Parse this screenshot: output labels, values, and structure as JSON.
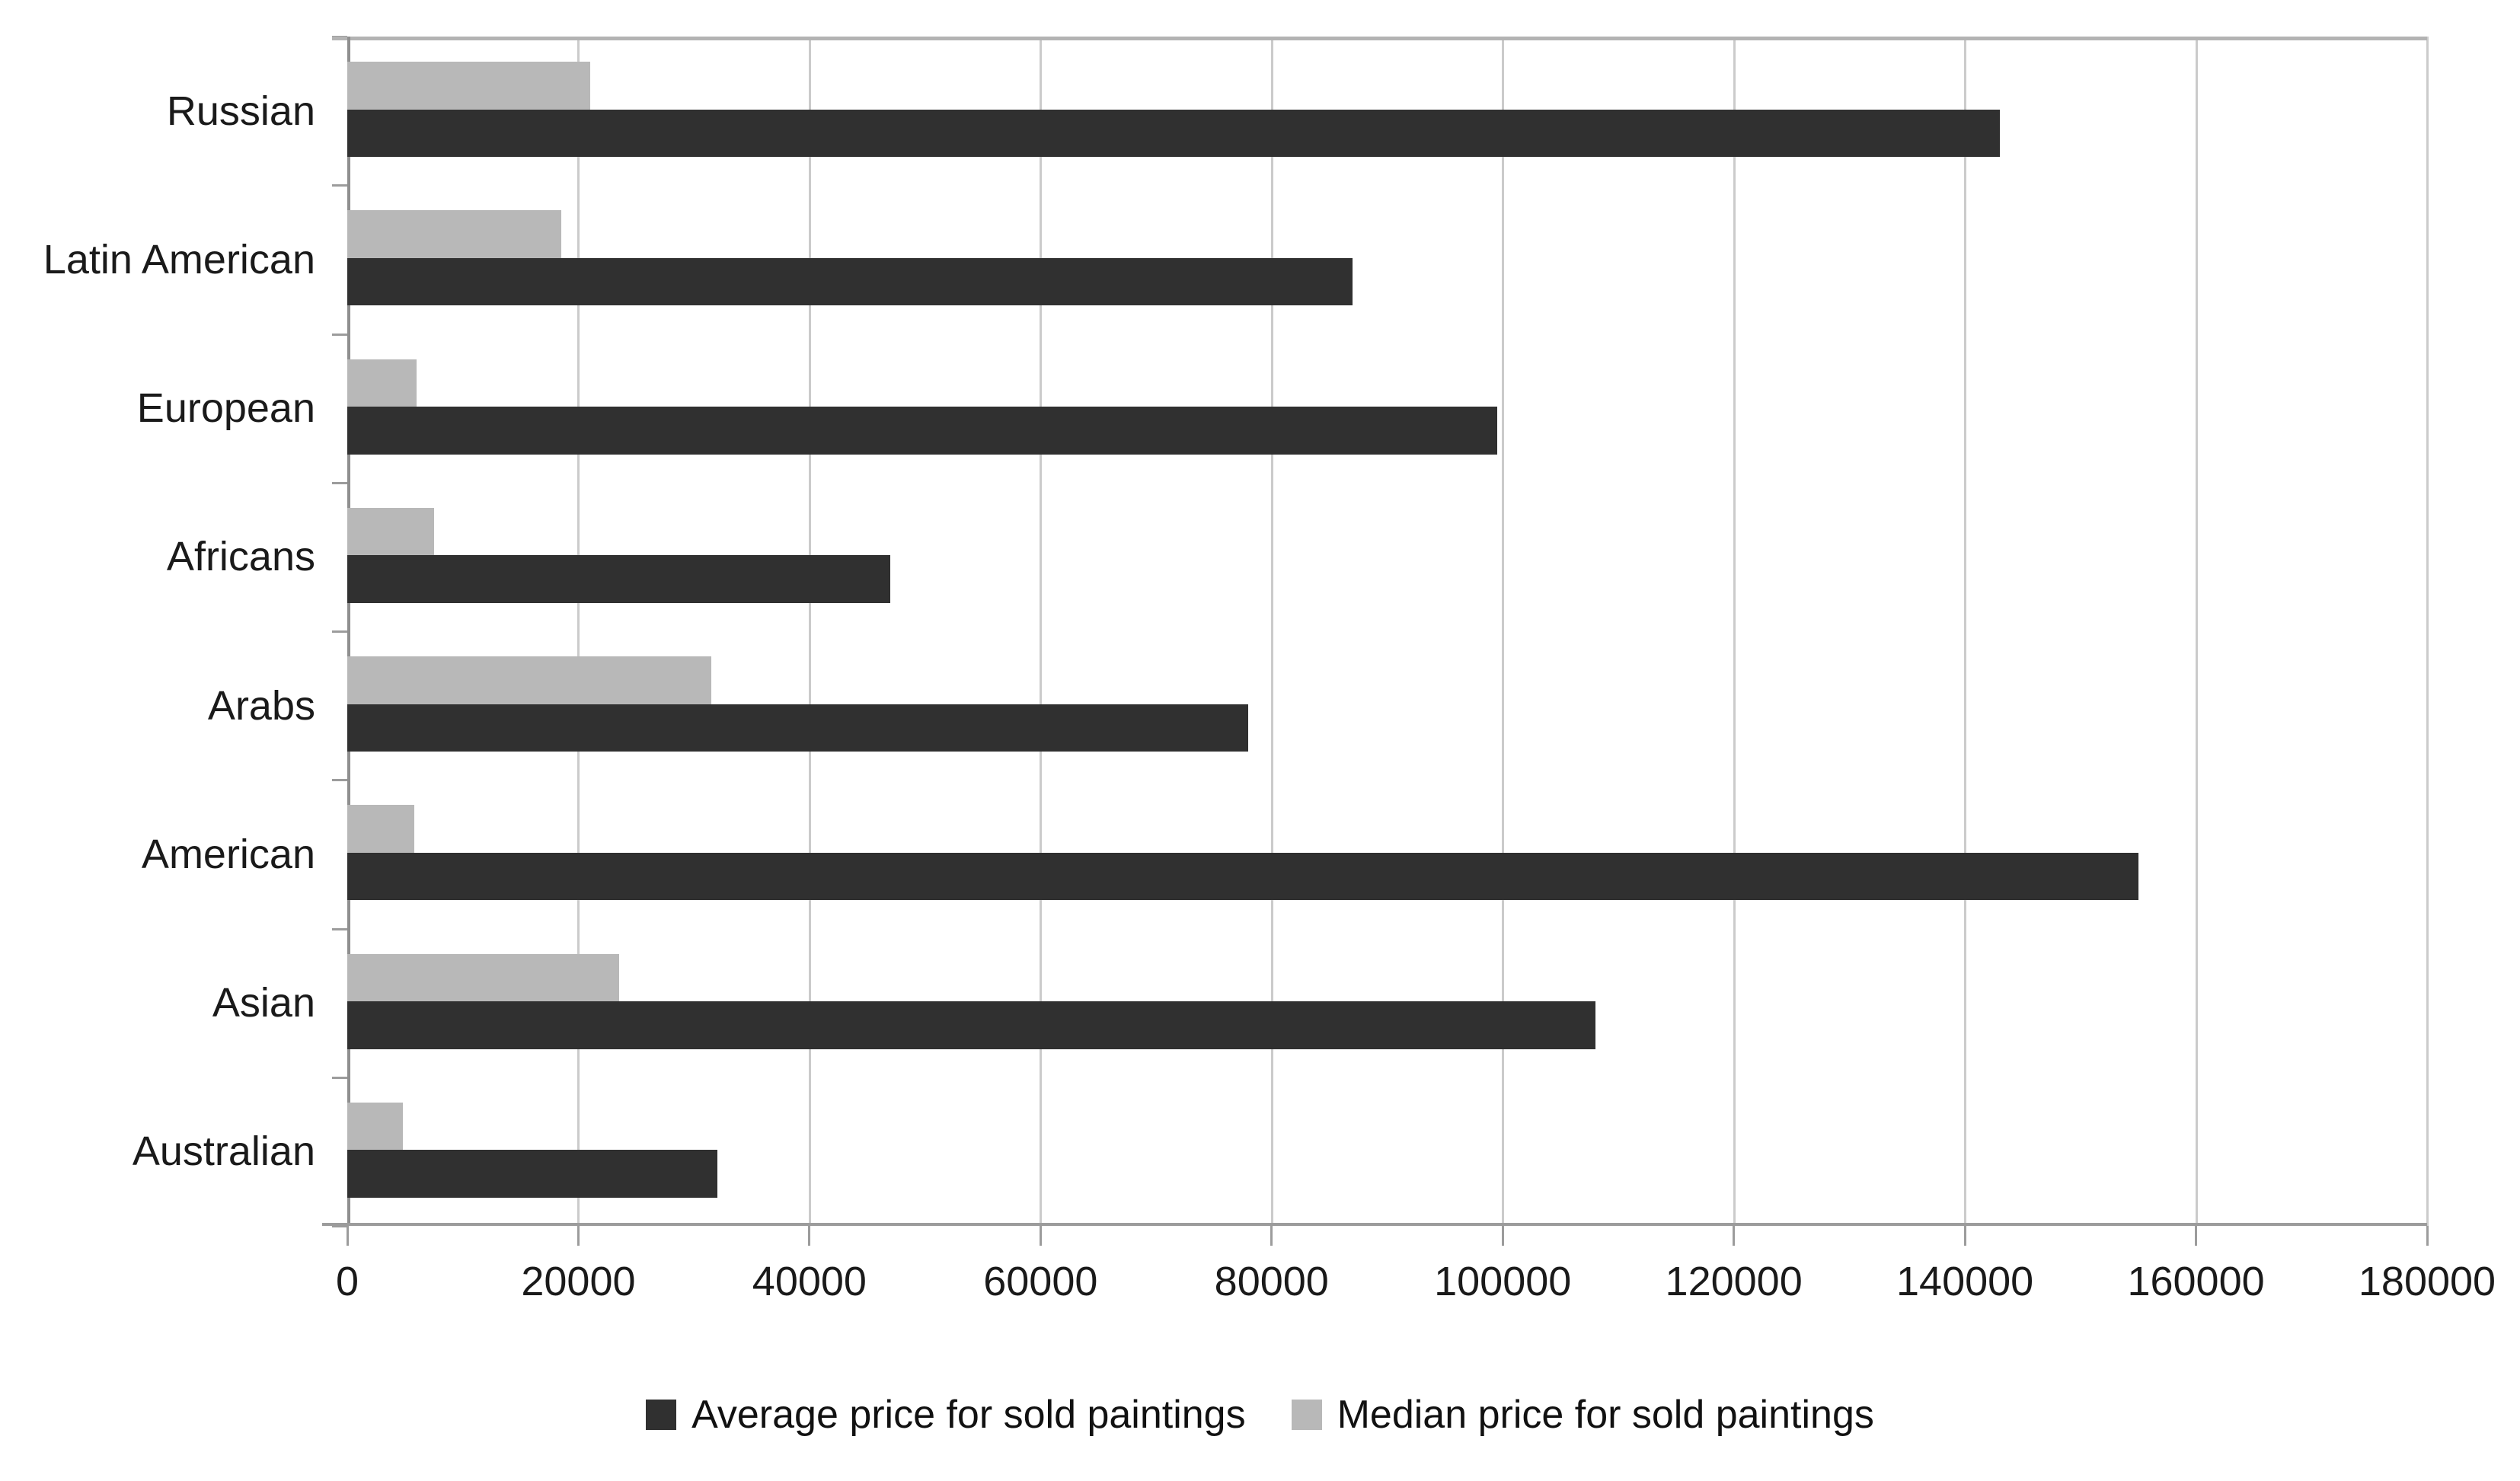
{
  "chart_data": {
    "type": "bar",
    "orientation": "horizontal",
    "title": "",
    "xlabel": "",
    "ylabel": "",
    "categories": [
      "Russian",
      "Latin American",
      "European",
      "Africans",
      "Arabs",
      "American",
      "Asian",
      "Australian"
    ],
    "series": [
      {
        "name": "Average price for sold paintings",
        "color": "#303030",
        "values": [
          143000,
          87000,
          99500,
          47000,
          78000,
          155000,
          108000,
          32000
        ]
      },
      {
        "name": "Median price for sold paintings",
        "color": "#b8b8b8",
        "values": [
          21000,
          18500,
          6000,
          7500,
          31500,
          5800,
          23500,
          4800
        ]
      }
    ],
    "xlim": [
      0,
      180000
    ],
    "x_ticks": [
      0,
      20000,
      40000,
      60000,
      80000,
      100000,
      120000,
      140000,
      160000,
      180000
    ],
    "grid": "vertical",
    "legend_position": "bottom",
    "bar_order_in_group_top_to_bottom": [
      "Median price for sold paintings",
      "Average price for sold paintings"
    ]
  },
  "colors": {
    "background": "#ffffff",
    "gridline": "#cbcbcb",
    "axis_line": "#9c9c9c",
    "text": "#1a1a1a"
  }
}
